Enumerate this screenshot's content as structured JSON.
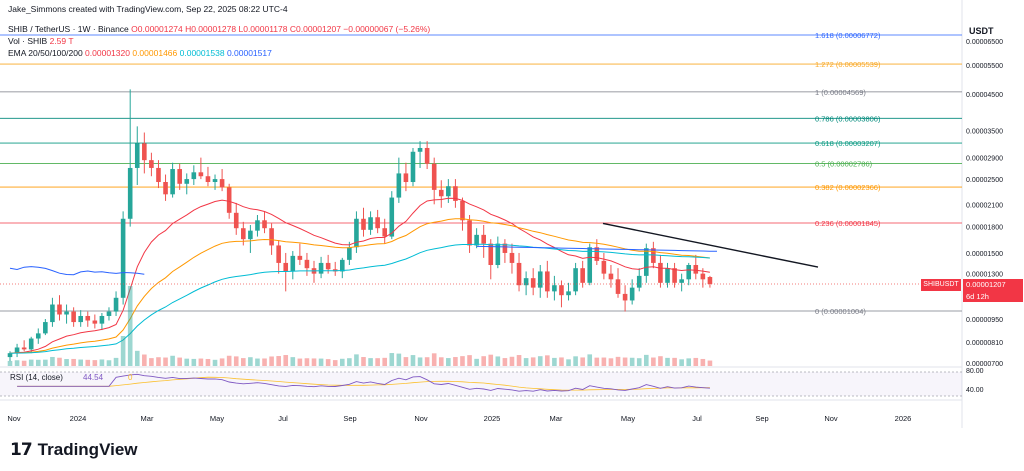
{
  "header": {
    "attribution": "Jake_Simmons created with TradingView.com, Sep 22, 2025 08:22 UTC-4",
    "symbol_line": "SHIB / TetherUS · 1W · Binance",
    "ohlc": {
      "open": "O0.00001274",
      "high": "H0.00001278",
      "low": "L0.00001178",
      "close": "C0.00001207",
      "change": "−0.00000067 (−5.26%)"
    },
    "vol": {
      "label": "Vol · SHIB",
      "value": "2.59 T"
    },
    "ema": {
      "label": "EMA 20/50/100/200",
      "v20": "0.00001320",
      "v50": "0.00001466",
      "v100": "0.00001538",
      "v200": "0.00001517"
    }
  },
  "quote_currency": "USDT",
  "price_label": {
    "ticker": "SHIBUSDT",
    "value": "0.00001207",
    "countdown": "6d 12h"
  },
  "brand": {
    "mark": "17",
    "name": "TradingView"
  },
  "colors": {
    "up": "#26a69a",
    "down": "#ef5350",
    "ema20": "#f23645",
    "ema50": "#ff9800",
    "ema100": "#00bcd4",
    "ema200": "#2962ff",
    "rsi": "#7e57c2",
    "rsi_ma": "#fbc02d",
    "trendline": "#131722"
  },
  "chart_data": {
    "type": "candlestick",
    "title": "SHIB / TetherUS · 1W · Binance",
    "y_scale": "log",
    "ylim": [
      6.5e-06,
      8e-06
    ],
    "y_ticks": [
      "0.00006500",
      "0.00005500",
      "0.00004500",
      "0.00003500",
      "0.00002900",
      "0.00002500",
      "0.00002100",
      "0.00001800",
      "0.00001500",
      "0.00001300",
      "0.00001100",
      "0.00000950",
      "0.00000810",
      "0.00000700"
    ],
    "x_ticks": [
      "Nov",
      "2024",
      "Mar",
      "May",
      "Jul",
      "Sep",
      "Nov",
      "2025",
      "Mar",
      "May",
      "Jul",
      "Sep",
      "Nov",
      "2026"
    ],
    "fibonacci": [
      {
        "level": "1.618",
        "price": 6.772e-05,
        "label": "1.618 (0.00006772)",
        "color": "#2962ff"
      },
      {
        "level": "1.272",
        "price": 5.539e-05,
        "label": "1.272 (0.00005539)",
        "color": "#f9a825"
      },
      {
        "level": "1",
        "price": 4.569e-05,
        "label": "1 (0.00004569)",
        "color": "#787b86"
      },
      {
        "level": "0.786",
        "price": 3.806e-05,
        "label": "0.786 (0.00003806)",
        "color": "#00897b"
      },
      {
        "level": "0.618",
        "price": 3.207e-05,
        "label": "0.618 (0.00003207)",
        "color": "#089981"
      },
      {
        "level": "0.5",
        "price": 2.786e-05,
        "label": "0.5 (0.00002786)",
        "color": "#4caf50"
      },
      {
        "level": "0.382",
        "price": 2.366e-05,
        "label": "0.382 (0.00002366)",
        "color": "#ff9800"
      },
      {
        "level": "0.236",
        "price": 1.845e-05,
        "label": "0.236 (0.00001845)",
        "color": "#f23645"
      },
      {
        "level": "0",
        "price": 1.004e-05,
        "label": "0 (0.00001004)",
        "color": "#787b86"
      }
    ],
    "candles": [
      [
        7.3e-06,
        7.6e-06,
        7.1e-06,
        7.5e-06
      ],
      [
        7.5e-06,
        8e-06,
        7.3e-06,
        7.8e-06
      ],
      [
        7.8e-06,
        8.2e-06,
        7.6e-06,
        7.7e-06
      ],
      [
        7.7e-06,
        8.4e-06,
        7.5e-06,
        8.3e-06
      ],
      [
        8.3e-06,
        8.9e-06,
        8e-06,
        8.6e-06
      ],
      [
        8.6e-06,
        9.5e-06,
        8.5e-06,
        9.3e-06
      ],
      [
        9.3e-06,
        1.1e-05,
        9e-06,
        1.05e-05
      ],
      [
        1.05e-05,
        1.12e-05,
        9.4e-06,
        9.8e-06
      ],
      [
        9.8e-06,
        1.05e-05,
        9.2e-06,
        1e-05
      ],
      [
        1e-05,
        1.03e-05,
        9e-06,
        9.3e-06
      ],
      [
        9.3e-06,
        1.01e-05,
        9e-06,
        9.7e-06
      ],
      [
        9.7e-06,
        1e-05,
        9e-06,
        9.4e-06
      ],
      [
        9.4e-06,
        9.8e-06,
        8.9e-06,
        9.2e-06
      ],
      [
        9.2e-06,
        9.9e-06,
        8.8e-06,
        9.7e-06
      ],
      [
        9.7e-06,
        1.03e-05,
        9.4e-06,
        1e-05
      ],
      [
        1e-05,
        1.15e-05,
        9.7e-06,
        1.1e-05
      ],
      [
        1.1e-05,
        2e-05,
        1.05e-05,
        1.9e-05
      ],
      [
        1.9e-05,
        4.65e-05,
        1.8e-05,
        2.7e-05
      ],
      [
        2.7e-05,
        3.6e-05,
        2.4e-05,
        3.2e-05
      ],
      [
        3.2e-05,
        3.45e-05,
        2.6e-05,
        2.85e-05
      ],
      [
        2.85e-05,
        3e-05,
        2.55e-05,
        2.7e-05
      ],
      [
        2.7e-05,
        2.85e-05,
        2.35e-05,
        2.45e-05
      ],
      [
        2.45e-05,
        2.58e-05,
        2.15e-05,
        2.25e-05
      ],
      [
        2.25e-05,
        2.8e-05,
        2.2e-05,
        2.68e-05
      ],
      [
        2.68e-05,
        2.78e-05,
        2.32e-05,
        2.42e-05
      ],
      [
        2.42e-05,
        2.6e-05,
        2.25e-05,
        2.5e-05
      ],
      [
        2.5e-05,
        2.75e-05,
        2.4e-05,
        2.62e-05
      ],
      [
        2.62e-05,
        2.9e-05,
        2.5e-05,
        2.55e-05
      ],
      [
        2.55e-05,
        2.72e-05,
        2.38e-05,
        2.45e-05
      ],
      [
        2.45e-05,
        2.58e-05,
        2.32e-05,
        2.5e-05
      ],
      [
        2.5e-05,
        2.68e-05,
        2.3e-05,
        2.36e-05
      ],
      [
        2.36e-05,
        2.42e-05,
        1.9e-05,
        1.98e-05
      ],
      [
        1.98e-05,
        2.12e-05,
        1.7e-05,
        1.78e-05
      ],
      [
        1.78e-05,
        1.86e-05,
        1.58e-05,
        1.65e-05
      ],
      [
        1.65e-05,
        1.82e-05,
        1.5e-05,
        1.75e-05
      ],
      [
        1.75e-05,
        1.95e-05,
        1.68e-05,
        1.88e-05
      ],
      [
        1.88e-05,
        2e-05,
        1.72e-05,
        1.78e-05
      ],
      [
        1.78e-05,
        1.84e-05,
        1.48e-05,
        1.58e-05
      ],
      [
        1.58e-05,
        1.64e-05,
        1.3e-05,
        1.4e-05
      ],
      [
        1.4e-05,
        1.5e-05,
        1.15e-05,
        1.32e-05
      ],
      [
        1.32e-05,
        1.52e-05,
        1.25e-05,
        1.47e-05
      ],
      [
        1.47e-05,
        1.6e-05,
        1.38e-05,
        1.43e-05
      ],
      [
        1.43e-05,
        1.5e-05,
        1.28e-05,
        1.35e-05
      ],
      [
        1.35e-05,
        1.42e-05,
        1.22e-05,
        1.3e-05
      ],
      [
        1.3e-05,
        1.46e-05,
        1.26e-05,
        1.4e-05
      ],
      [
        1.4e-05,
        1.48e-05,
        1.3e-05,
        1.34e-05
      ],
      [
        1.34e-05,
        1.41e-05,
        1.28e-05,
        1.32e-05
      ],
      [
        1.32e-05,
        1.45e-05,
        1.26e-05,
        1.43e-05
      ],
      [
        1.43e-05,
        1.62e-05,
        1.38e-05,
        1.56e-05
      ],
      [
        1.56e-05,
        2e-05,
        1.5e-05,
        1.9e-05
      ],
      [
        1.9e-05,
        2.05e-05,
        1.68e-05,
        1.76e-05
      ],
      [
        1.76e-05,
        2e-05,
        1.7e-05,
        1.92e-05
      ],
      [
        1.92e-05,
        2.02e-05,
        1.72e-05,
        1.78e-05
      ],
      [
        1.78e-05,
        1.9e-05,
        1.6e-05,
        1.68e-05
      ],
      [
        1.68e-05,
        2.3e-05,
        1.65e-05,
        2.2e-05
      ],
      [
        2.2e-05,
        2.9e-05,
        2.12e-05,
        2.6e-05
      ],
      [
        2.6e-05,
        2.8e-05,
        2.3e-05,
        2.45e-05
      ],
      [
        2.45e-05,
        3.1e-05,
        2.38e-05,
        3.02e-05
      ],
      [
        3.02e-05,
        3.25e-05,
        2.7e-05,
        3.1e-05
      ],
      [
        3.1e-05,
        3.25e-05,
        2.68e-05,
        2.78e-05
      ],
      [
        2.78e-05,
        2.9e-05,
        2.1e-05,
        2.32e-05
      ],
      [
        2.32e-05,
        2.48e-05,
        2.05e-05,
        2.22e-05
      ],
      [
        2.22e-05,
        2.5e-05,
        2.12e-05,
        2.38e-05
      ],
      [
        2.38e-05,
        2.5e-05,
        2.05e-05,
        2.15e-05
      ],
      [
        2.15e-05,
        2.2e-05,
        1.75e-05,
        1.88e-05
      ],
      [
        1.88e-05,
        1.95e-05,
        1.5e-05,
        1.58e-05
      ],
      [
        1.58e-05,
        1.78e-05,
        1.55e-05,
        1.7e-05
      ],
      [
        1.7e-05,
        1.82e-05,
        1.45e-05,
        1.6e-05
      ],
      [
        1.6e-05,
        1.65e-05,
        1.25e-05,
        1.38e-05
      ],
      [
        1.38e-05,
        1.68e-05,
        1.35e-05,
        1.6e-05
      ],
      [
        1.6e-05,
        1.65e-05,
        1.4e-05,
        1.5e-05
      ],
      [
        1.5e-05,
        1.6e-05,
        1.3e-05,
        1.4e-05
      ],
      [
        1.4e-05,
        1.5e-05,
        1.15e-05,
        1.2e-05
      ],
      [
        1.2e-05,
        1.32e-05,
        1.12e-05,
        1.26e-05
      ],
      [
        1.26e-05,
        1.35e-05,
        1.12e-05,
        1.18e-05
      ],
      [
        1.18e-05,
        1.38e-05,
        1.1e-05,
        1.32e-05
      ],
      [
        1.32e-05,
        1.42e-05,
        1.1e-05,
        1.15e-05
      ],
      [
        1.15e-05,
        1.28e-05,
        1.08e-05,
        1.2e-05
      ],
      [
        1.2e-05,
        1.24e-05,
        1.03e-05,
        1.12e-05
      ],
      [
        1.12e-05,
        1.22e-05,
        1.08e-05,
        1.15e-05
      ],
      [
        1.15e-05,
        1.4e-05,
        1.12e-05,
        1.35e-05
      ],
      [
        1.35e-05,
        1.42e-05,
        1.18e-05,
        1.22e-05
      ],
      [
        1.22e-05,
        1.6e-05,
        1.2e-05,
        1.56e-05
      ],
      [
        1.56e-05,
        1.65e-05,
        1.38e-05,
        1.42e-05
      ],
      [
        1.42e-05,
        1.5e-05,
        1.25e-05,
        1.3e-05
      ],
      [
        1.3e-05,
        1.38e-05,
        1.18e-05,
        1.25e-05
      ],
      [
        1.25e-05,
        1.35e-05,
        1.1e-05,
        1.13e-05
      ],
      [
        1.13e-05,
        1.2e-05,
        1e-05,
        1.08e-05
      ],
      [
        1.08e-05,
        1.25e-05,
        1.05e-05,
        1.18e-05
      ],
      [
        1.18e-05,
        1.35e-05,
        1.15e-05,
        1.28e-05
      ],
      [
        1.28e-05,
        1.6e-05,
        1.22e-05,
        1.55e-05
      ],
      [
        1.55e-05,
        1.62e-05,
        1.35e-05,
        1.4e-05
      ],
      [
        1.4e-05,
        1.48e-05,
        1.18e-05,
        1.22e-05
      ],
      [
        1.22e-05,
        1.4e-05,
        1.18e-05,
        1.35e-05
      ],
      [
        1.35e-05,
        1.4e-05,
        1.18e-05,
        1.22e-05
      ],
      [
        1.22e-05,
        1.3e-05,
        1.15e-05,
        1.25e-05
      ],
      [
        1.25e-05,
        1.4e-05,
        1.2e-05,
        1.38e-05
      ],
      [
        1.38e-05,
        1.48e-05,
        1.25e-05,
        1.3e-05
      ],
      [
        1.3e-05,
        1.35e-05,
        1.18e-05,
        1.25e-05
      ],
      [
        1.27e-05,
        1.28e-05,
        1.18e-05,
        1.21e-05
      ]
    ],
    "ema20_label": "EMA 20",
    "ema50_label": "EMA 50",
    "ema100_label": "EMA 100",
    "ema200_label": "EMA 200",
    "trendline": [
      [
        1.84e-05,
        1.36e-05
      ]
    ],
    "rsi": {
      "label": "RSI (14, close)",
      "value": "44.54",
      "extra": "0",
      "levels": [
        "80.00",
        "40.00"
      ]
    }
  }
}
